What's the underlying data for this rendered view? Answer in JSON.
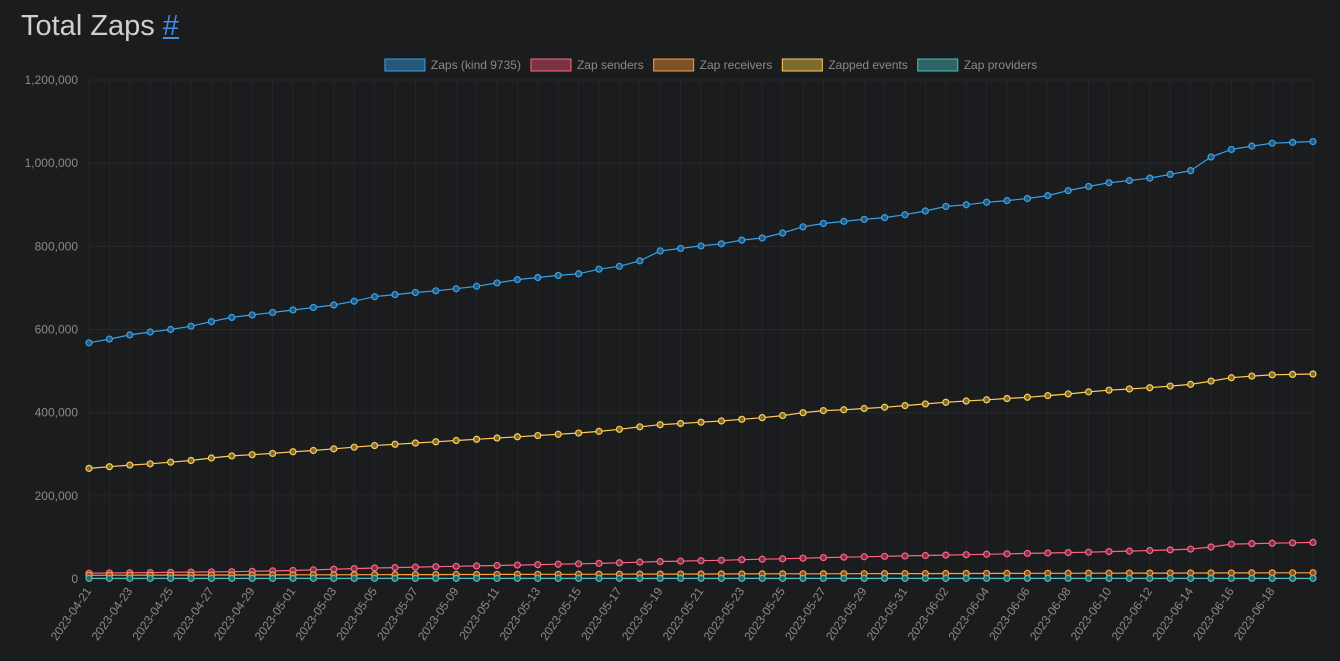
{
  "page": {
    "title": "Total Zaps",
    "anchor": "#"
  },
  "chart_data": {
    "type": "line",
    "title": "",
    "xlabel": "",
    "ylabel": "",
    "ylim": [
      0,
      1200000
    ],
    "yticks": [
      0,
      200000,
      400000,
      600000,
      800000,
      1000000,
      1200000
    ],
    "ytick_labels": [
      "0",
      "200,000",
      "400,000",
      "600,000",
      "800,000",
      "1,000,000",
      "1,200,000"
    ],
    "grid": true,
    "legend_position": "top",
    "x": [
      "2023-04-21",
      "2023-04-22",
      "2023-04-23",
      "2023-04-24",
      "2023-04-25",
      "2023-04-26",
      "2023-04-27",
      "2023-04-28",
      "2023-04-29",
      "2023-04-30",
      "2023-05-01",
      "2023-05-02",
      "2023-05-03",
      "2023-05-04",
      "2023-05-05",
      "2023-05-06",
      "2023-05-07",
      "2023-05-08",
      "2023-05-09",
      "2023-05-10",
      "2023-05-11",
      "2023-05-12",
      "2023-05-13",
      "2023-05-14",
      "2023-05-15",
      "2023-05-16",
      "2023-05-17",
      "2023-05-18",
      "2023-05-19",
      "2023-05-20",
      "2023-05-21",
      "2023-05-22",
      "2023-05-23",
      "2023-05-24",
      "2023-05-25",
      "2023-05-26",
      "2023-05-27",
      "2023-05-28",
      "2023-05-29",
      "2023-05-30",
      "2023-05-31",
      "2023-06-01",
      "2023-06-02",
      "2023-06-03",
      "2023-06-04",
      "2023-06-05",
      "2023-06-06",
      "2023-06-07",
      "2023-06-08",
      "2023-06-09",
      "2023-06-10",
      "2023-06-11",
      "2023-06-12",
      "2023-06-13",
      "2023-06-14",
      "2023-06-15",
      "2023-06-16",
      "2023-06-17",
      "2023-06-18",
      "2023-06-19",
      "2023-06-20"
    ],
    "xtick_labels": [
      "2023-04-21",
      "2023-04-23",
      "2023-04-25",
      "2023-04-27",
      "2023-04-29",
      "2023-05-01",
      "2023-05-03",
      "2023-05-05",
      "2023-05-07",
      "2023-05-09",
      "2023-05-11",
      "2023-05-13",
      "2023-05-15",
      "2023-05-17",
      "2023-05-19",
      "2023-05-21",
      "2023-05-23",
      "2023-05-25",
      "2023-05-27",
      "2023-05-29",
      "2023-05-31",
      "2023-06-02",
      "2023-06-04",
      "2023-06-06",
      "2023-06-08",
      "2023-06-10",
      "2023-06-12",
      "2023-06-14",
      "2023-06-16",
      "2023-06-18"
    ],
    "series": [
      {
        "name": "Zaps (kind 9735)",
        "color": "#36a2eb",
        "fill": "#285878",
        "values": [
          568000,
          577000,
          587000,
          594000,
          600000,
          608000,
          619000,
          629000,
          635000,
          641000,
          647000,
          653000,
          659000,
          668000,
          679000,
          684000,
          689000,
          693000,
          698000,
          704000,
          712000,
          720000,
          725000,
          730000,
          734000,
          745000,
          752000,
          765000,
          789000,
          795000,
          801000,
          806000,
          815000,
          820000,
          832000,
          847000,
          855000,
          860000,
          865000,
          869000,
          876000,
          885000,
          896000,
          900000,
          906000,
          910000,
          915000,
          922000,
          934000,
          944000,
          953000,
          958000,
          964000,
          973000,
          982000,
          1015000,
          1033000,
          1041000,
          1048000,
          1050000,
          1052000
        ]
      },
      {
        "name": "Zap senders",
        "color": "#ff6384",
        "fill": "#7a3343",
        "values": [
          14000,
          14500,
          15000,
          15500,
          16000,
          16500,
          17000,
          17500,
          18500,
          19500,
          20500,
          22000,
          23500,
          25000,
          26500,
          27500,
          28500,
          29500,
          30500,
          31500,
          32500,
          33500,
          34500,
          35500,
          36500,
          37500,
          39000,
          40500,
          42000,
          43000,
          44000,
          45000,
          46500,
          47500,
          48500,
          50000,
          51500,
          52500,
          53500,
          54500,
          55500,
          56500,
          57500,
          58500,
          59500,
          60500,
          61500,
          62500,
          63500,
          64500,
          66000,
          67000,
          68500,
          70000,
          72000,
          77000,
          84000,
          85000,
          86000,
          87000,
          88000
        ]
      },
      {
        "name": "Zap receivers",
        "color": "#ff9f40",
        "fill": "#7c5228",
        "values": [
          9000,
          9100,
          9200,
          9300,
          9400,
          9500,
          9600,
          9700,
          9800,
          9900,
          10000,
          10100,
          10200,
          10300,
          10400,
          10500,
          10600,
          10700,
          10800,
          10900,
          11000,
          11100,
          11200,
          11300,
          11400,
          11500,
          11600,
          11700,
          11800,
          11900,
          12000,
          12100,
          12200,
          12300,
          12400,
          12500,
          12600,
          12700,
          12800,
          12900,
          13000,
          13100,
          13200,
          13300,
          13400,
          13500,
          13600,
          13700,
          13800,
          13900,
          14000,
          14100,
          14200,
          14300,
          14400,
          14500,
          14600,
          14700,
          14800,
          14900,
          15000
        ]
      },
      {
        "name": "Zapped events",
        "color": "#ffcd56",
        "fill": "#7c6a30",
        "values": [
          266000,
          270000,
          274000,
          277000,
          281000,
          285000,
          291000,
          296000,
          299000,
          302000,
          306000,
          309000,
          313000,
          317000,
          321000,
          324000,
          327000,
          330000,
          333000,
          336000,
          339000,
          342000,
          345000,
          348000,
          351000,
          355000,
          360000,
          366000,
          371000,
          374000,
          377000,
          380000,
          384000,
          388000,
          393000,
          400000,
          405000,
          407000,
          410000,
          413000,
          417000,
          421000,
          425000,
          428000,
          431000,
          434000,
          437000,
          441000,
          445000,
          450000,
          454000,
          457000,
          460000,
          464000,
          468000,
          476000,
          484000,
          488000,
          491000,
          492000,
          493000
        ]
      },
      {
        "name": "Zap providers",
        "color": "#4bc0c0",
        "fill": "#2f6464",
        "values": [
          1500,
          1500,
          1500,
          1500,
          1500,
          1500,
          1500,
          1500,
          1500,
          1500,
          1500,
          1500,
          1500,
          1500,
          1500,
          1500,
          1500,
          1500,
          1500,
          1500,
          1500,
          1500,
          1500,
          1500,
          1500,
          1500,
          1500,
          1500,
          1500,
          1500,
          1500,
          1500,
          1500,
          1500,
          1500,
          1500,
          1500,
          1500,
          1500,
          1500,
          1500,
          1500,
          1500,
          1500,
          1500,
          1500,
          1500,
          1500,
          1500,
          1500,
          1500,
          1500,
          1500,
          1500,
          1500,
          1500,
          1500,
          1500,
          1500,
          1500,
          1500
        ]
      }
    ]
  }
}
